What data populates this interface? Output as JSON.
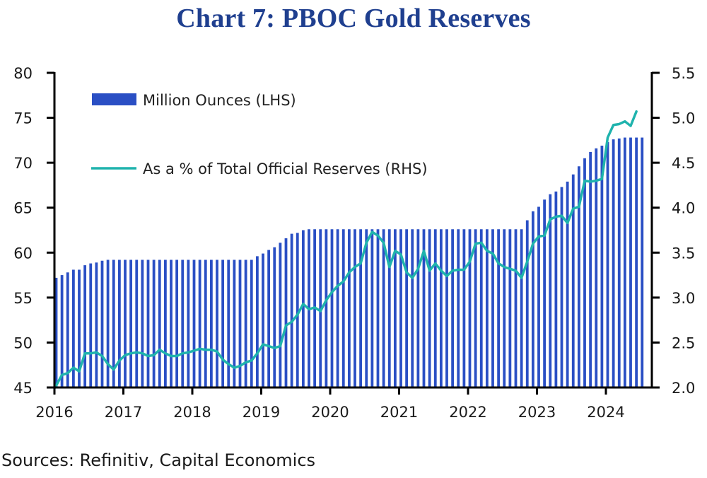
{
  "title": "Chart 7: PBOC Gold Reserves",
  "sources": "Sources: Refinitiv, Capital Economics",
  "colors": {
    "title": "#1f3f8f",
    "bars": "#2a4fc4",
    "line": "#1fb3ad",
    "axis": "#000000"
  },
  "chart_data": {
    "type": "bar+line",
    "title": "Chart 7: PBOC Gold Reserves",
    "x_start": "2016-01",
    "frequency": "monthly",
    "xlim": [
      2016,
      2024.75
    ],
    "x_tick_labels": [
      "2016",
      "2017",
      "2018",
      "2019",
      "2020",
      "2021",
      "2022",
      "2023",
      "2024"
    ],
    "y_left": {
      "range": [
        45,
        80
      ],
      "tick_labels": [
        "45",
        "50",
        "55",
        "60",
        "65",
        "70",
        "75",
        "80"
      ],
      "ticks": [
        45,
        50,
        55,
        60,
        65,
        70,
        75,
        80
      ]
    },
    "y_right": {
      "range": [
        2.0,
        5.5
      ],
      "tick_labels": [
        "2.0",
        "2.5",
        "3.0",
        "3.5",
        "4.0",
        "4.5",
        "5.0",
        "5.5"
      ],
      "ticks": [
        2.0,
        2.5,
        3.0,
        3.5,
        4.0,
        4.5,
        5.0,
        5.5
      ]
    },
    "legend_position": "top-left",
    "grid": false,
    "series": [
      {
        "name": "Million Ounces (LHS)",
        "type": "bar",
        "axis": "left",
        "values": [
          57.2,
          57.5,
          57.8,
          58.1,
          58.1,
          58.6,
          58.8,
          58.9,
          59.1,
          59.2,
          59.2,
          59.2,
          59.2,
          59.2,
          59.2,
          59.2,
          59.2,
          59.2,
          59.2,
          59.2,
          59.2,
          59.2,
          59.2,
          59.2,
          59.2,
          59.2,
          59.2,
          59.2,
          59.2,
          59.2,
          59.2,
          59.2,
          59.2,
          59.2,
          59.2,
          59.6,
          59.9,
          60.3,
          60.6,
          61.1,
          61.6,
          62.1,
          62.2,
          62.5,
          62.6,
          62.6,
          62.6,
          62.6,
          62.6,
          62.6,
          62.6,
          62.6,
          62.6,
          62.6,
          62.6,
          62.6,
          62.6,
          62.6,
          62.6,
          62.6,
          62.6,
          62.6,
          62.6,
          62.6,
          62.6,
          62.6,
          62.6,
          62.6,
          62.6,
          62.6,
          62.6,
          62.6,
          62.6,
          62.6,
          62.6,
          62.6,
          62.6,
          62.6,
          62.6,
          62.6,
          62.6,
          62.6,
          63.6,
          64.6,
          65.1,
          65.9,
          66.5,
          66.8,
          67.3,
          67.9,
          68.7,
          69.6,
          70.5,
          71.2,
          71.6,
          71.9,
          72.3,
          72.6,
          72.7,
          72.8,
          72.8,
          72.8,
          72.8
        ]
      },
      {
        "name": "As a % of Total Official Reserves (RHS)",
        "type": "line",
        "axis": "right",
        "values": [
          2.0,
          2.14,
          2.16,
          2.22,
          2.18,
          2.38,
          2.38,
          2.39,
          2.35,
          2.26,
          2.2,
          2.3,
          2.36,
          2.38,
          2.39,
          2.38,
          2.35,
          2.36,
          2.42,
          2.38,
          2.35,
          2.35,
          2.38,
          2.39,
          2.41,
          2.43,
          2.42,
          2.42,
          2.4,
          2.31,
          2.26,
          2.22,
          2.24,
          2.28,
          2.3,
          2.38,
          2.48,
          2.46,
          2.44,
          2.46,
          2.69,
          2.73,
          2.81,
          2.93,
          2.87,
          2.89,
          2.85,
          2.97,
          3.06,
          3.13,
          3.18,
          3.28,
          3.34,
          3.38,
          3.61,
          3.73,
          3.69,
          3.61,
          3.34,
          3.52,
          3.48,
          3.28,
          3.22,
          3.32,
          3.52,
          3.3,
          3.38,
          3.3,
          3.24,
          3.3,
          3.31,
          3.31,
          3.4,
          3.6,
          3.61,
          3.52,
          3.49,
          3.38,
          3.34,
          3.32,
          3.3,
          3.22,
          3.4,
          3.6,
          3.68,
          3.69,
          3.87,
          3.9,
          3.91,
          3.83,
          3.99,
          4.01,
          4.3,
          4.29,
          4.3,
          4.32,
          4.78,
          4.92,
          4.93,
          4.96,
          4.91,
          5.07
        ]
      }
    ]
  }
}
